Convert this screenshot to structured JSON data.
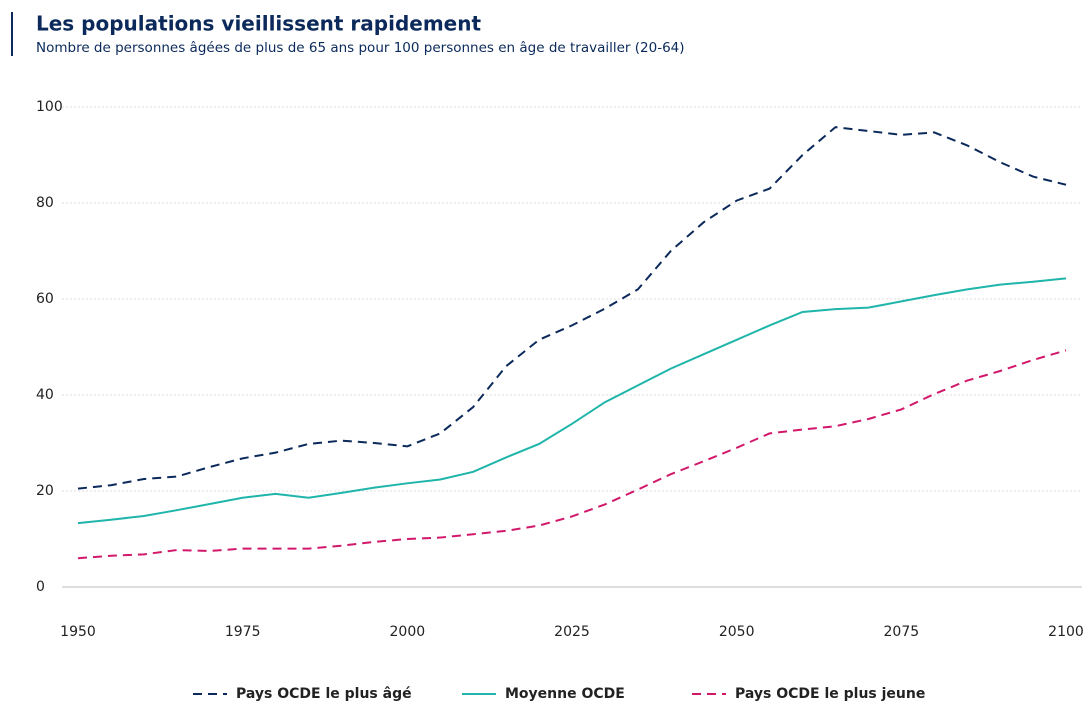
{
  "chart_data": {
    "type": "line",
    "title": "Les populations vieillissent rapidement",
    "subtitle": "Nombre de personnes âgées de plus de 65 ans pour 100 personnes en âge de travailler (20-64)",
    "x": [
      1950,
      1955,
      1960,
      1965,
      1970,
      1975,
      1980,
      1985,
      1990,
      1995,
      2000,
      2005,
      2010,
      2015,
      2020,
      2025,
      2030,
      2035,
      2040,
      2045,
      2050,
      2055,
      2060,
      2065,
      2070,
      2075,
      2080,
      2085,
      2090,
      2095,
      2100
    ],
    "series": [
      {
        "name": "Pays OCDE le plus âgé",
        "color": "#0b2a5b",
        "line_style": "dashed",
        "values": [
          20.5,
          21.2,
          22.5,
          23,
          25,
          26.8,
          28,
          29.8,
          30.5,
          30,
          29.3,
          32,
          37.5,
          46,
          51.5,
          54.5,
          58,
          62,
          70,
          76,
          80.5,
          83,
          90,
          95.8,
          95,
          94.2,
          94.7,
          92,
          88.5,
          85.5,
          83.8
        ]
      },
      {
        "name": "Moyenne OCDE",
        "color": "#1fb5aa",
        "line_style": "solid",
        "values": [
          13.3,
          14,
          14.8,
          16,
          17.3,
          18.6,
          19.4,
          18.6,
          19.6,
          20.7,
          21.6,
          22.4,
          24,
          27,
          29.8,
          34,
          38.5,
          42,
          45.5,
          48.5,
          51.5,
          54.5,
          57.3,
          57.9,
          58.2,
          59.5,
          60.8,
          62,
          63,
          63.6,
          64.3
        ]
      },
      {
        "name": "Pays OCDE le plus jeune",
        "color": "#d2186b",
        "line_style": "dashed",
        "values": [
          6,
          6.5,
          6.8,
          7.7,
          7.5,
          8,
          8,
          8,
          8.6,
          9.4,
          10,
          10.3,
          11,
          11.7,
          12.8,
          14.7,
          17.2,
          20.3,
          23.5,
          26.2,
          29,
          32,
          32.8,
          33.5,
          35,
          37,
          40.2,
          43,
          45,
          47.3,
          49.3
        ]
      }
    ],
    "xlim": [
      1950,
      2100
    ],
    "xticks": [
      1950,
      1975,
      2000,
      2025,
      2050,
      2075,
      2100
    ],
    "ylim": [
      0,
      100
    ],
    "yticks": [
      0,
      20,
      40,
      60,
      80,
      100
    ],
    "grid": true,
    "legend": "bottom"
  }
}
